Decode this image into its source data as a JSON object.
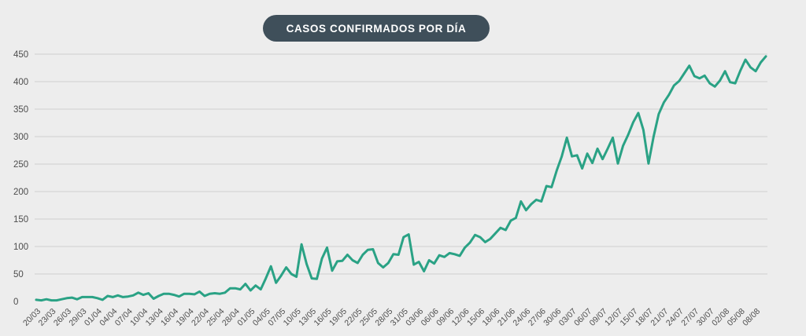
{
  "chart_data": {
    "type": "line",
    "title": "CASOS CONFIRMADOS POR DÍA",
    "xlabel": "",
    "ylabel": "",
    "ylim": [
      0,
      450
    ],
    "yticks": [
      0,
      50,
      100,
      150,
      200,
      250,
      300,
      350,
      400,
      450
    ],
    "grid": true,
    "legend": "none",
    "colors": {
      "line": "#2aa285",
      "grid": "#cfcfcf",
      "title_bg": "#3f4f5a",
      "background": "#ededed"
    },
    "x_tick_labels": [
      "20/03",
      "23/03",
      "26/03",
      "29/03",
      "01/04",
      "04/04",
      "07/04",
      "10/04",
      "13/04",
      "16/04",
      "19/04",
      "22/04",
      "25/04",
      "28/04",
      "01/05",
      "04/05",
      "07/05",
      "10/05",
      "13/05",
      "16/05",
      "19/05",
      "22/05",
      "25/05",
      "28/05",
      "31/05",
      "03/06",
      "06/06",
      "09/06",
      "12/06",
      "15/06",
      "18/06",
      "21/06",
      "24/06",
      "27/06",
      "30/06",
      "03/07",
      "06/07",
      "09/07",
      "12/07",
      "15/07",
      "18/07",
      "21/07",
      "24/07",
      "27/07",
      "30/07",
      "02/08",
      "05/08",
      "08/08"
    ],
    "series": [
      {
        "name": "Casos confirmados",
        "start_date": "20/03",
        "end_date": "09/08",
        "values": [
          3,
          2,
          4,
          2,
          2,
          4,
          6,
          7,
          4,
          8,
          8,
          8,
          6,
          3,
          10,
          8,
          11,
          8,
          9,
          11,
          16,
          12,
          15,
          5,
          10,
          14,
          14,
          12,
          9,
          14,
          14,
          13,
          18,
          10,
          14,
          15,
          14,
          16,
          24,
          24,
          22,
          32,
          20,
          29,
          22,
          42,
          64,
          34,
          47,
          62,
          50,
          45,
          104,
          68,
          42,
          41,
          78,
          98,
          56,
          73,
          74,
          85,
          75,
          70,
          85,
          94,
          95,
          70,
          62,
          70,
          86,
          85,
          117,
          122,
          67,
          72,
          55,
          75,
          69,
          84,
          81,
          88,
          86,
          83,
          98,
          107,
          121,
          117,
          108,
          114,
          124,
          134,
          130,
          147,
          152,
          182,
          166,
          177,
          185,
          182,
          210,
          208,
          238,
          264,
          298,
          264,
          266,
          242,
          269,
          252,
          278,
          259,
          278,
          298,
          251,
          283,
          303,
          326,
          343,
          312,
          251,
          300,
          341,
          362,
          376,
          393,
          401,
          415,
          429,
          410,
          406,
          411,
          397,
          391,
          402,
          419,
          399,
          397,
          420,
          440,
          426,
          419,
          435,
          446
        ]
      }
    ]
  }
}
